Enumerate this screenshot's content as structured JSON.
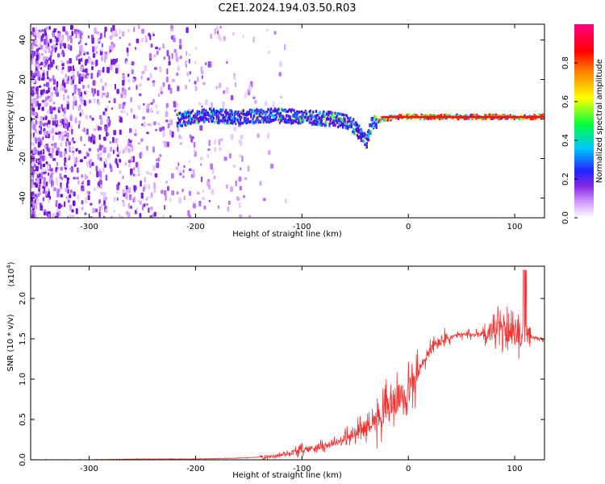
{
  "title": "C2E1.2024.194.03.50.R03",
  "chart_data": [
    {
      "type": "heatmap",
      "xlabel": "Height of straight line (km)",
      "ylabel": "Frequency (Hz)",
      "xlim": [
        -355,
        128
      ],
      "ylim": [
        -50,
        48
      ],
      "xticks": [
        -300,
        -200,
        -100,
        0,
        100
      ],
      "yticks": [
        -40,
        -20,
        0,
        20,
        40
      ],
      "colorbar": {
        "label": "Normalized spectral amplitude",
        "range": [
          0.0,
          1.0
        ],
        "ticks": [
          "0.0",
          "0.2",
          "0.4",
          "0.6",
          "0.8"
        ],
        "colors": [
          "#ffffff",
          "#d08cff",
          "#8a2be2",
          "#2a1aff",
          "#00c8ff",
          "#00ff40",
          "#ffff00",
          "#ff7a00",
          "#ff0000",
          "#ff0080"
        ]
      },
      "ridge": {
        "x": [
          -215,
          -190,
          -160,
          -130,
          -100,
          -70,
          -55,
          -45,
          -40,
          -35,
          -25,
          -10,
          0,
          50,
          100,
          128
        ],
        "y": [
          0,
          2,
          1,
          2,
          1,
          0,
          -2,
          -8,
          -12,
          -2,
          0,
          1,
          1,
          1,
          1,
          1
        ]
      }
    },
    {
      "type": "line",
      "xlabel": "Height of straight line (km)",
      "ylabel": "SNR (10 * v/v)",
      "multiplier": "(x10",
      "multiplier_exp": "4",
      "multiplier_close": ")",
      "xlim": [
        -355,
        128
      ],
      "ylim": [
        0,
        2.4
      ],
      "xticks": [
        -300,
        -200,
        -100,
        0,
        100
      ],
      "yticks": [
        "0.0",
        "0.5",
        "1.0",
        "1.5",
        "2.0"
      ],
      "series": [
        {
          "color": "#ee3333",
          "x": [
            -355,
            -300,
            -250,
            -200,
            -160,
            -130,
            -115,
            -100,
            -80,
            -60,
            -50,
            -40,
            -30,
            -20,
            -10,
            0,
            5,
            10,
            20,
            30,
            40,
            50,
            60,
            70,
            80,
            90,
            95,
            100,
            110,
            115,
            128
          ],
          "y": [
            0.0,
            0.0,
            0.01,
            0.01,
            0.02,
            0.04,
            0.07,
            0.12,
            0.17,
            0.25,
            0.32,
            0.4,
            0.52,
            0.65,
            0.75,
            0.85,
            0.95,
            1.1,
            1.35,
            1.47,
            1.52,
            1.55,
            1.55,
            1.57,
            1.6,
            1.62,
            1.58,
            1.55,
            1.53,
            1.52,
            1.5
          ]
        }
      ]
    }
  ]
}
